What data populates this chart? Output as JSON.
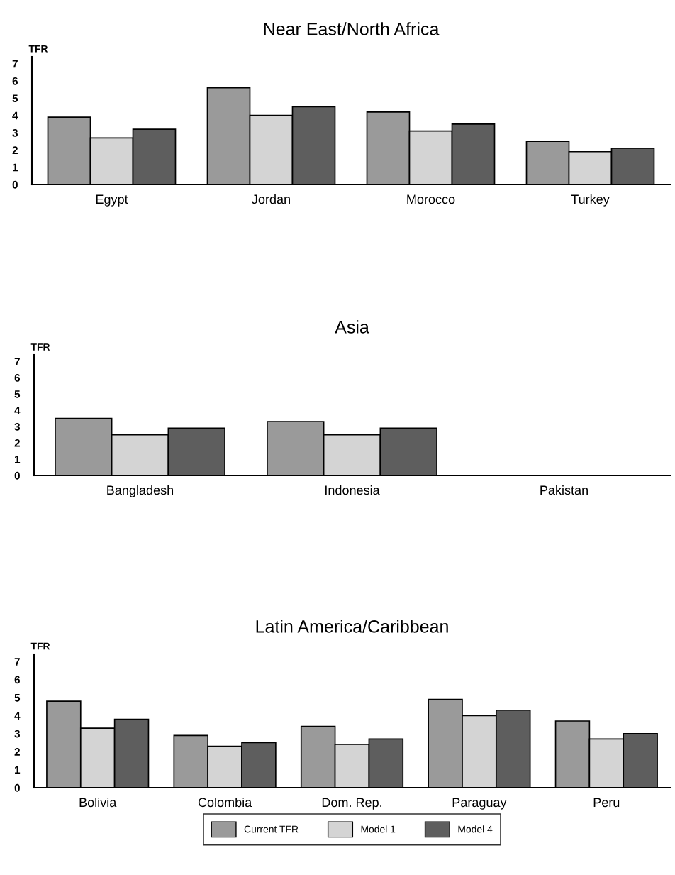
{
  "chart_data": [
    {
      "type": "bar",
      "title": "Near East/North Africa",
      "ylabel": "TFR",
      "categories": [
        "Egypt",
        "Jordan",
        "Morocco",
        "Turkey"
      ],
      "series": [
        {
          "color": "#9a9a9a",
          "values": [
            3.9,
            5.6,
            4.2,
            2.5
          ]
        },
        {
          "color": "#d4d4d4",
          "values": [
            2.7,
            4.0,
            3.1,
            1.9
          ]
        },
        {
          "color": "#5e5e5e",
          "values": [
            3.2,
            4.5,
            3.5,
            2.1
          ]
        }
      ],
      "ylim": [
        0,
        7.4
      ],
      "yticks": [
        0,
        1,
        2,
        3,
        4,
        5,
        6,
        7
      ],
      "grid": false,
      "legend": false
    },
    {
      "type": "bar",
      "title": "Asia",
      "ylabel": "TFR",
      "categories": [
        "Bangladesh",
        "Indonesia",
        "Pakistan"
      ],
      "series": [
        {
          "color": "#9a9a9a",
          "values": [
            3.5,
            3.3,
            null
          ]
        },
        {
          "color": "#d4d4d4",
          "values": [
            2.5,
            2.5,
            null
          ]
        },
        {
          "color": "#5e5e5e",
          "values": [
            2.9,
            2.9,
            null
          ]
        }
      ],
      "ylim": [
        0,
        7.4
      ],
      "yticks": [
        0,
        1,
        2,
        3,
        4,
        5,
        6,
        7
      ],
      "grid": false,
      "legend": false
    },
    {
      "type": "bar",
      "title": "Latin America/Caribbean",
      "ylabel": "TFR",
      "categories": [
        "Bolivia",
        "Colombia",
        "Dom. Rep.",
        "Paraguay",
        "Peru"
      ],
      "series": [
        {
          "name": "Current TFR",
          "color": "#9a9a9a",
          "values": [
            4.8,
            2.9,
            3.4,
            4.9,
            3.7
          ]
        },
        {
          "name": "Model 1",
          "color": "#d4d4d4",
          "values": [
            3.3,
            2.3,
            2.4,
            4.0,
            2.7
          ]
        },
        {
          "name": "Model 4",
          "color": "#5e5e5e",
          "values": [
            3.8,
            2.5,
            2.7,
            4.3,
            3.0
          ]
        }
      ],
      "ylim": [
        0,
        7.4
      ],
      "yticks": [
        0,
        1,
        2,
        3,
        4,
        5,
        6,
        7
      ],
      "grid": false,
      "legend": "bottom"
    }
  ]
}
